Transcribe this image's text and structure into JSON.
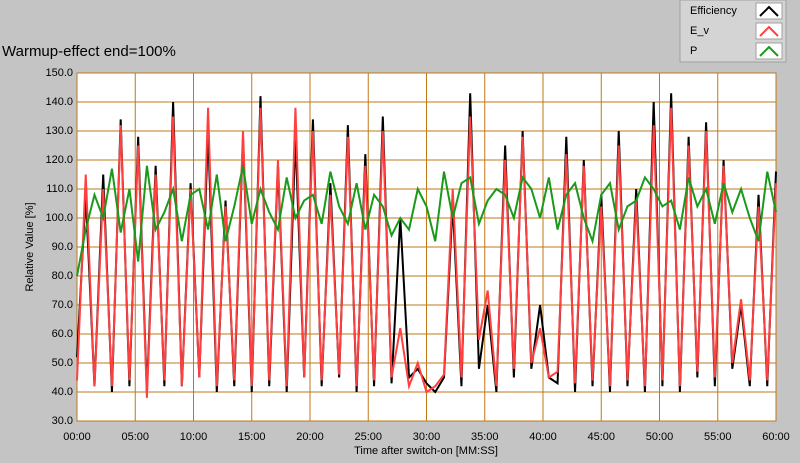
{
  "chart_data": {
    "type": "line",
    "title": "Warmup-effect end=100%",
    "x_label": "Time after switch-on [MM:SS]",
    "y_label": "Relative Value [%]",
    "x": [
      0,
      0.75,
      1.5,
      2.25,
      3,
      3.75,
      4.5,
      5.25,
      6,
      6.75,
      7.5,
      8.25,
      9,
      9.75,
      10.5,
      11.25,
      12,
      12.75,
      13.5,
      14.25,
      15,
      15.75,
      16.5,
      17.25,
      18,
      18.75,
      19.5,
      20.25,
      21,
      21.75,
      22.5,
      23.25,
      24,
      24.75,
      25.5,
      26.25,
      27,
      27.75,
      28.5,
      29.25,
      30,
      30.75,
      31.5,
      32.25,
      33,
      33.75,
      34.5,
      35.25,
      36,
      36.75,
      37.5,
      38.25,
      39,
      39.75,
      40.5,
      41.25,
      42,
      42.75,
      43.5,
      44.25,
      45,
      45.75,
      46.5,
      47.25,
      48,
      48.75,
      49.5,
      50.25,
      51,
      51.75,
      52.5,
      53.25,
      54,
      54.75,
      55.5,
      56.25,
      57,
      57.75,
      58.5,
      59.25,
      60
    ],
    "series": [
      {
        "name": "Efficiency",
        "color": "#000000",
        "values": [
          52,
          108,
          42,
          115,
          40,
          134,
          42,
          128,
          40,
          118,
          42,
          140,
          42,
          112,
          45,
          130,
          40,
          106,
          42,
          128,
          40,
          142,
          42,
          118,
          40,
          128,
          45,
          134,
          42,
          112,
          45,
          132,
          40,
          122,
          42,
          135,
          43,
          100,
          45,
          48,
          43,
          40,
          45,
          105,
          42,
          143,
          48,
          70,
          40,
          125,
          45,
          130,
          48,
          70,
          45,
          43,
          128,
          40,
          120,
          42,
          108,
          40,
          130,
          42,
          110,
          40,
          140,
          42,
          143,
          40,
          128,
          45,
          133,
          42,
          120,
          48,
          70,
          42,
          108,
          42,
          116
        ]
      },
      {
        "name": "E_v",
        "color": "#ff4040",
        "values": [
          44,
          115,
          42,
          110,
          42,
          132,
          44,
          125,
          38,
          115,
          44,
          135,
          42,
          110,
          45,
          138,
          42,
          104,
          44,
          130,
          42,
          138,
          44,
          120,
          42,
          138,
          45,
          130,
          44,
          108,
          46,
          128,
          42,
          118,
          44,
          130,
          45,
          62,
          42,
          50,
          40,
          42,
          46,
          110,
          45,
          135,
          58,
          75,
          42,
          120,
          48,
          128,
          50,
          62,
          45,
          47,
          122,
          43,
          118,
          44,
          104,
          42,
          125,
          44,
          106,
          42,
          132,
          44,
          138,
          42,
          125,
          47,
          130,
          45,
          118,
          50,
          72,
          44,
          104,
          44,
          112
        ]
      },
      {
        "name": "P",
        "color": "#1a9a1a",
        "values": [
          80,
          96,
          108,
          100,
          117,
          95,
          110,
          85,
          118,
          96,
          102,
          110,
          92,
          108,
          110,
          96,
          115,
          92,
          104,
          118,
          98,
          110,
          102,
          96,
          114,
          100,
          106,
          108,
          98,
          116,
          104,
          98,
          112,
          96,
          108,
          104,
          94,
          100,
          96,
          110,
          104,
          92,
          116,
          100,
          112,
          114,
          98,
          106,
          110,
          108,
          100,
          114,
          110,
          100,
          114,
          96,
          108,
          112,
          100,
          92,
          108,
          112,
          96,
          104,
          106,
          114,
          110,
          104,
          106,
          96,
          114,
          104,
          110,
          98,
          112,
          102,
          110,
          100,
          92,
          116,
          102
        ]
      }
    ],
    "xlim": [
      0,
      60
    ],
    "xticks": [
      {
        "value": 0,
        "label": "00:00"
      },
      {
        "value": 5,
        "label": "05:00"
      },
      {
        "value": 10,
        "label": "10:00"
      },
      {
        "value": 15,
        "label": "15:00"
      },
      {
        "value": 20,
        "label": "20:00"
      },
      {
        "value": 25,
        "label": "25:00"
      },
      {
        "value": 30,
        "label": "30:00"
      },
      {
        "value": 35,
        "label": "35:00"
      },
      {
        "value": 40,
        "label": "40:00"
      },
      {
        "value": 45,
        "label": "45:00"
      },
      {
        "value": 50,
        "label": "50:00"
      },
      {
        "value": 55,
        "label": "55:00"
      },
      {
        "value": 60,
        "label": "60:00"
      }
    ],
    "ylim": [
      30,
      150
    ],
    "yticks": [
      {
        "value": 30,
        "label": "30.0"
      },
      {
        "value": 40,
        "label": "40.0"
      },
      {
        "value": 50,
        "label": "50.0"
      },
      {
        "value": 60,
        "label": "60.0"
      },
      {
        "value": 70,
        "label": "70.0"
      },
      {
        "value": 80,
        "label": "80.0"
      },
      {
        "value": 90,
        "label": "90.0"
      },
      {
        "value": 100,
        "label": "100.0"
      },
      {
        "value": 110,
        "label": "110.0"
      },
      {
        "value": 120,
        "label": "120.0"
      },
      {
        "value": 130,
        "label": "130.0"
      },
      {
        "value": 140,
        "label": "140.0"
      },
      {
        "value": 150,
        "label": "150.0"
      }
    ],
    "grid": true,
    "grid_color": "#c07818",
    "legend": "top-right"
  }
}
